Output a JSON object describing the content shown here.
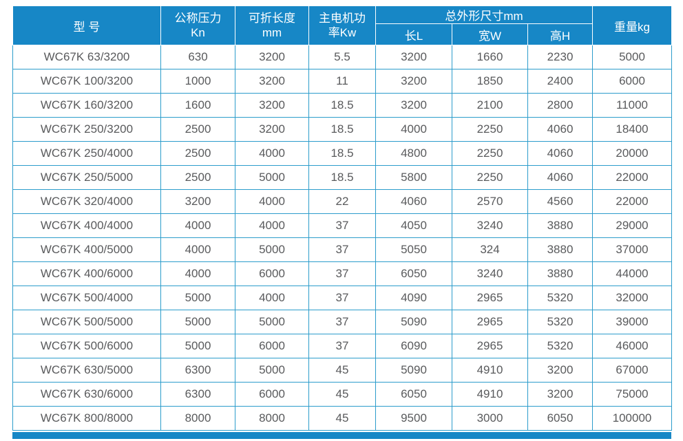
{
  "colors": {
    "header_bg": "#1787c6",
    "border": "#2b9ccb",
    "cell_text": "#595a5c",
    "header_text": "#ffffff",
    "bottom_bar": "#1787c6"
  },
  "chart_data": {
    "type": "table",
    "header": {
      "model": "型 号",
      "pressure_line1": "公称压力",
      "pressure_line2": "Kn",
      "fold_length_line1": "可折长度",
      "fold_length_line2": "mm",
      "motor_power_line1": "主电机功",
      "motor_power_line2": "率Kw",
      "overall_dimensions": "总外形尺寸mm",
      "dim_length": "长L",
      "dim_width": "宽W",
      "dim_height": "高H",
      "weight": "重量kg"
    },
    "rows": [
      [
        "WC67K 63/3200",
        "630",
        "3200",
        "5.5",
        "3200",
        "1660",
        "2230",
        "5000"
      ],
      [
        "WC67K 100/3200",
        "1000",
        "3200",
        "11",
        "3200",
        "1850",
        "2400",
        "6000"
      ],
      [
        "WC67K 160/3200",
        "1600",
        "3200",
        "18.5",
        "3200",
        "2100",
        "2800",
        "11000"
      ],
      [
        "WC67K 250/3200",
        "2500",
        "3200",
        "18.5",
        "4000",
        "2250",
        "4060",
        "18400"
      ],
      [
        "WC67K 250/4000",
        "2500",
        "4000",
        "18.5",
        "4800",
        "2250",
        "4060",
        "20000"
      ],
      [
        "WC67K 250/5000",
        "2500",
        "5000",
        "18.5",
        "5800",
        "2250",
        "4060",
        "22000"
      ],
      [
        "WC67K 320/4000",
        "3200",
        "4000",
        "22",
        "4060",
        "2570",
        "4560",
        "22000"
      ],
      [
        "WC67K 400/4000",
        "4000",
        "4000",
        "37",
        "4050",
        "3240",
        "3880",
        "29000"
      ],
      [
        "WC67K 400/5000",
        "4000",
        "5000",
        "37",
        "5050",
        "324",
        "3880",
        "37000"
      ],
      [
        "WC67K 400/6000",
        "4000",
        "6000",
        "37",
        "6050",
        "3240",
        "3880",
        "44000"
      ],
      [
        "WC67K 500/4000",
        "5000",
        "4000",
        "37",
        "4090",
        "2965",
        "5320",
        "32000"
      ],
      [
        "WC67K 500/5000",
        "5000",
        "5000",
        "37",
        "5090",
        "2965",
        "5320",
        "39000"
      ],
      [
        "WC67K 500/6000",
        "5000",
        "6000",
        "37",
        "6090",
        "2965",
        "5320",
        "46000"
      ],
      [
        "WC67K 630/5000",
        "6300",
        "5000",
        "45",
        "5090",
        "4910",
        "3200",
        "67000"
      ],
      [
        "WC67K 630/6000",
        "6300",
        "6000",
        "45",
        "6050",
        "4910",
        "3200",
        "75000"
      ],
      [
        "WC67K 800/8000",
        "8000",
        "8000",
        "45",
        "9500",
        "3000",
        "6050",
        "100000"
      ]
    ]
  }
}
